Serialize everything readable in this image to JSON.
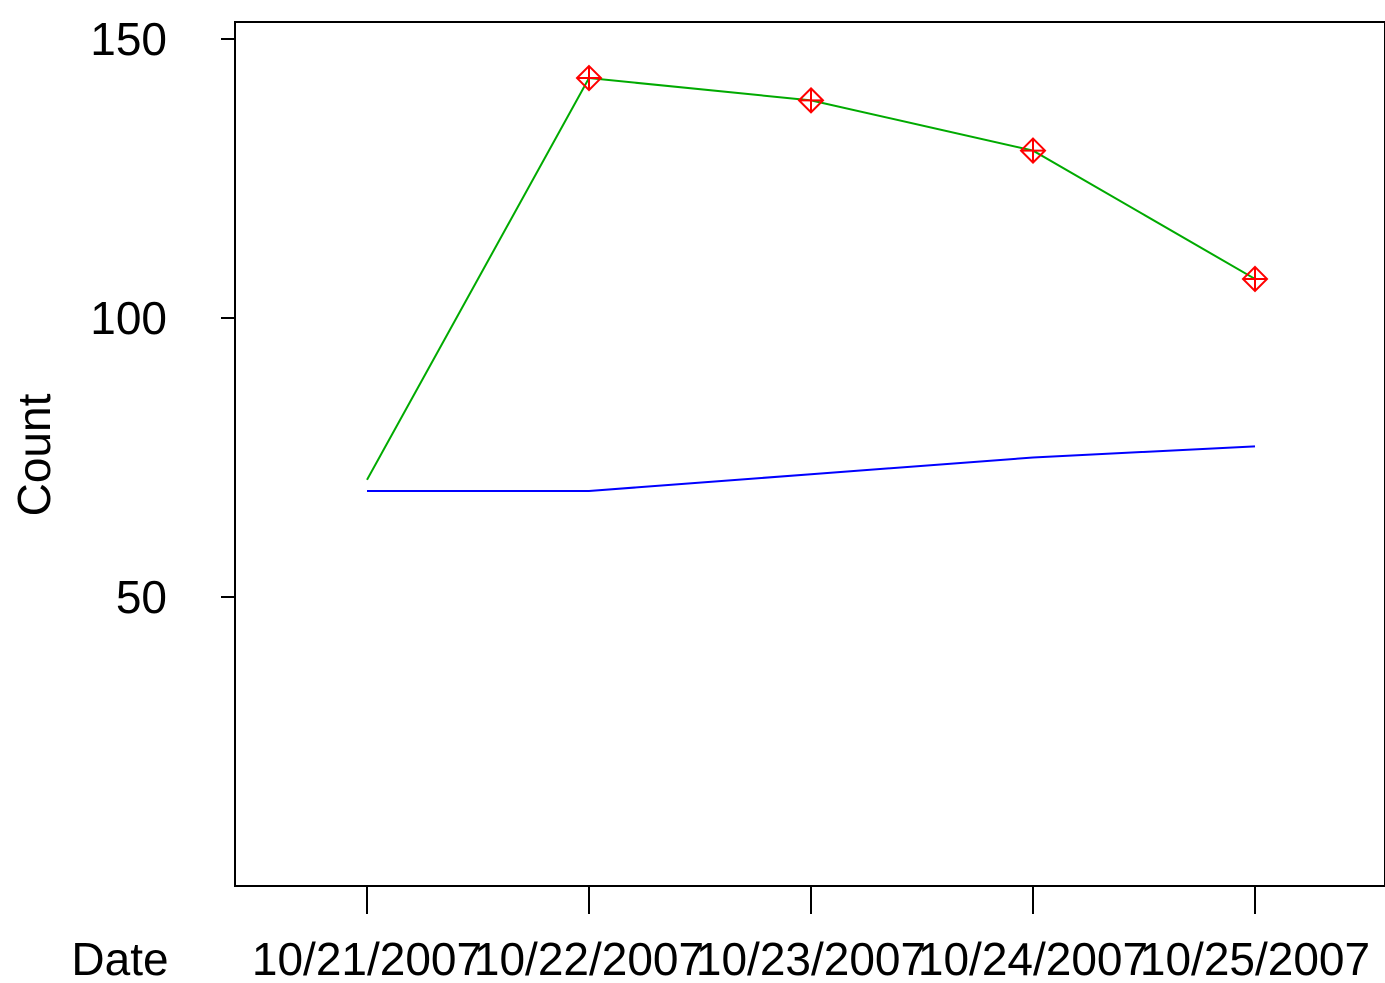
{
  "chart_data": {
    "type": "line",
    "xlabel": "Date",
    "ylabel": "Count",
    "categories": [
      "10/21/2007",
      "10/22/2007",
      "10/23/2007",
      "10/24/2007",
      "10/25/2007"
    ],
    "yticks": [
      50,
      100,
      150
    ],
    "ylim": [
      0,
      152.5
    ],
    "grid": false,
    "series": [
      {
        "values": [
          71,
          143,
          139,
          130,
          107
        ],
        "color": "#00aa00",
        "markers_on_points": [
          1,
          2,
          3,
          4
        ],
        "marker": "diamond-plus",
        "marker_color": "#ff0000"
      },
      {
        "values": [
          69,
          69,
          72,
          75,
          77
        ],
        "color": "#0000ff"
      }
    ]
  }
}
